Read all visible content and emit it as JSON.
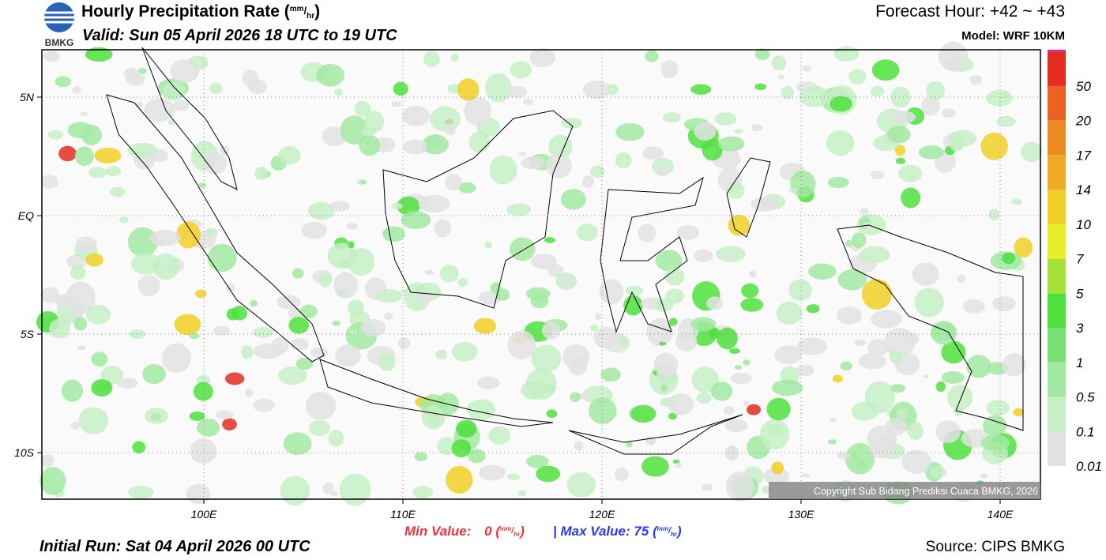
{
  "logo": "BMKG",
  "header": {
    "title": "Hourly Precipitation Rate",
    "valid": "Valid: Sun 05 April 2026 18 UTC to 19 UTC",
    "forecast_hour": "Forecast Hour: +42 ~ +43",
    "model": "Model: WRF 10KM"
  },
  "unit": {
    "open": "(",
    "num": "mm",
    "sep": "/",
    "den": "hr",
    "close": ")"
  },
  "map": {
    "yticks": [
      "5N",
      "EQ",
      "5S",
      "10S"
    ],
    "xticks": [
      "100E",
      "110E",
      "120E",
      "130E",
      "140E"
    ],
    "copyright": "Copyright Sub Bidang Prediksi Cuaca BMKG, 2026"
  },
  "colorbar": {
    "levels": [
      "0.01",
      "0.1",
      "0.5",
      "1",
      "3",
      "5",
      "7",
      "10",
      "14",
      "17",
      "20",
      "50"
    ],
    "colors": [
      "#e2e2e2",
      "#c6efc6",
      "#a2e9a2",
      "#76e276",
      "#4ee03c",
      "#a6e23a",
      "#e8ee2a",
      "#f0cf26",
      "#efab24",
      "#ee8a22",
      "#ea6122",
      "#e42c20",
      "#e21cc0"
    ]
  },
  "footer": {
    "min_label": "Min Value:",
    "min_value": "0",
    "max_label": "| Max Value:",
    "max_value": "75",
    "initial_run": "Initial Run: Sat 04 April 2026 00 UTC",
    "source": "Source: CIPS BMKG"
  }
}
